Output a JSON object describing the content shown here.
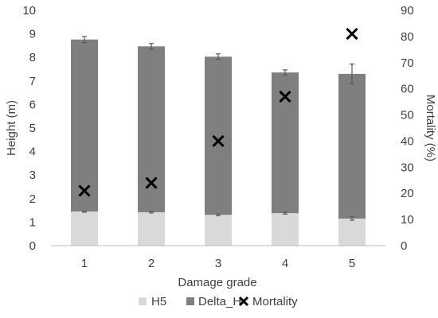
{
  "colors": {
    "h5": "#d9d9d9",
    "delta_h": "#7f7f7f",
    "mortality": "#000000",
    "axis": "#bfbfbf",
    "error_bar": "#595959",
    "text": "#404040"
  },
  "chart_data": {
    "type": "bar",
    "stacked": true,
    "categories": [
      "1",
      "2",
      "3",
      "4",
      "5"
    ],
    "xlabel": "Damage grade",
    "ylabel": "Height (m)",
    "y2label": "Mortality (%)",
    "ylim": [
      0,
      10
    ],
    "y_ticks": [
      0,
      1,
      2,
      3,
      4,
      5,
      6,
      7,
      8,
      9,
      10
    ],
    "y2lim": [
      0,
      90
    ],
    "y2_ticks": [
      0,
      10,
      20,
      30,
      40,
      50,
      60,
      70,
      80,
      90
    ],
    "grid": false,
    "legend_position": "bottom",
    "series": [
      {
        "name": "H5",
        "type": "bar",
        "axis": "left",
        "values": [
          1.45,
          1.42,
          1.31,
          1.38,
          1.15
        ],
        "error": [
          0.03,
          0.03,
          0.04,
          0.04,
          0.07
        ]
      },
      {
        "name": "Delta_H",
        "type": "bar",
        "axis": "left",
        "values": [
          7.31,
          7.05,
          6.72,
          5.98,
          6.15
        ],
        "error": [
          0.13,
          0.12,
          0.12,
          0.11,
          0.42
        ]
      },
      {
        "name": "Mortality",
        "type": "scatter",
        "marker": "x",
        "axis": "right",
        "values": [
          21,
          24,
          40,
          57,
          81
        ]
      }
    ]
  }
}
